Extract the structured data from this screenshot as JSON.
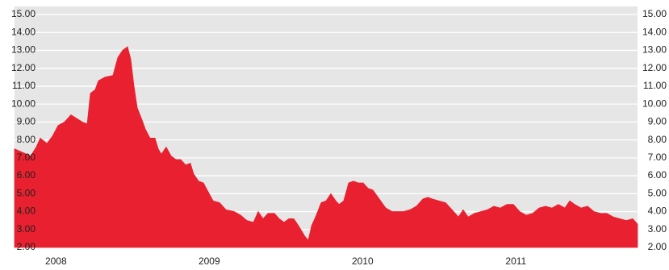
{
  "chart_data": {
    "type": "area",
    "color": "#e8202f",
    "grid": true,
    "x": [
      2007.73,
      2007.783,
      2007.835,
      2007.872,
      2007.898,
      2007.941,
      2007.977,
      2008.014,
      2008.056,
      2008.098,
      2008.135,
      2008.172,
      2008.204,
      2008.225,
      2008.256,
      2008.277,
      2008.319,
      2008.372,
      2008.404,
      2008.435,
      2008.467,
      2008.488,
      2008.509,
      2008.53,
      2008.562,
      2008.583,
      2008.614,
      2008.646,
      2008.667,
      2008.688,
      2008.719,
      2008.751,
      2008.783,
      2008.814,
      2008.846,
      2008.877,
      2008.898,
      2008.93,
      2008.962,
      2008.993,
      2009.025,
      2009.067,
      2009.109,
      2009.162,
      2009.204,
      2009.246,
      2009.288,
      2009.319,
      2009.351,
      2009.383,
      2009.425,
      2009.456,
      2009.488,
      2009.519,
      2009.551,
      2009.583,
      2009.625,
      2009.646,
      2009.667,
      2009.698,
      2009.73,
      2009.762,
      2009.793,
      2009.825,
      2009.846,
      2009.877,
      2009.909,
      2009.941,
      2009.972,
      2010.004,
      2010.035,
      2010.067,
      2010.109,
      2010.151,
      2010.193,
      2010.235,
      2010.267,
      2010.309,
      2010.351,
      2010.393,
      2010.425,
      2010.456,
      2010.498,
      2010.541,
      2010.583,
      2010.625,
      2010.656,
      2010.688,
      2010.73,
      2010.772,
      2010.814,
      2010.856,
      2010.898,
      2010.941,
      2010.983,
      2011.025,
      2011.067,
      2011.109,
      2011.151,
      2011.193,
      2011.235,
      2011.277,
      2011.319,
      2011.351,
      2011.383,
      2011.425,
      2011.467,
      2011.509,
      2011.551,
      2011.593,
      2011.635,
      2011.677,
      2011.719,
      2011.762,
      2011.793
    ],
    "values": [
      7.5,
      7.3,
      7.1,
      7.6,
      8.1,
      7.8,
      8.2,
      8.8,
      9.0,
      9.4,
      9.2,
      9.0,
      8.9,
      10.6,
      10.8,
      11.3,
      11.5,
      11.6,
      12.6,
      13.0,
      13.2,
      12.5,
      11.0,
      9.8,
      9.1,
      8.6,
      8.1,
      8.1,
      7.5,
      7.2,
      7.6,
      7.1,
      6.9,
      6.9,
      6.6,
      6.7,
      6.1,
      5.7,
      5.6,
      5.1,
      4.6,
      4.5,
      4.1,
      4.0,
      3.8,
      3.5,
      3.4,
      4.0,
      3.6,
      3.9,
      3.9,
      3.6,
      3.4,
      3.6,
      3.6,
      3.2,
      2.6,
      2.4,
      3.2,
      3.8,
      4.5,
      4.6,
      5.0,
      4.6,
      4.4,
      4.6,
      5.6,
      5.7,
      5.6,
      5.6,
      5.3,
      5.2,
      4.7,
      4.2,
      4.0,
      4.0,
      4.0,
      4.1,
      4.3,
      4.7,
      4.8,
      4.7,
      4.6,
      4.5,
      4.1,
      3.7,
      4.1,
      3.7,
      3.9,
      4.0,
      4.1,
      4.3,
      4.2,
      4.4,
      4.4,
      4.0,
      3.8,
      3.9,
      4.2,
      4.3,
      4.2,
      4.4,
      4.2,
      4.6,
      4.4,
      4.2,
      4.3,
      4.0,
      3.9,
      3.9,
      3.7,
      3.6,
      3.5,
      3.6,
      3.3
    ],
    "xlim": [
      2007.73,
      2011.793
    ],
    "xticks": [
      2008,
      2009,
      2010,
      2011
    ],
    "ylim": [
      2,
      15
    ],
    "yticks": [
      {
        "value": 2,
        "label": "2.00"
      },
      {
        "value": 3,
        "label": "3.00"
      },
      {
        "value": 4,
        "label": "4.00"
      },
      {
        "value": 5,
        "label": "5.00"
      },
      {
        "value": 6,
        "label": "6.00"
      },
      {
        "value": 7,
        "label": "7.00"
      },
      {
        "value": 8,
        "label": "8.00"
      },
      {
        "value": 9,
        "label": "9.00"
      },
      {
        "value": 10,
        "label": "10.00"
      },
      {
        "value": 11,
        "label": "11.00"
      },
      {
        "value": 12,
        "label": "12.00"
      },
      {
        "value": 13,
        "label": "13.00"
      },
      {
        "value": 14,
        "label": "14.00"
      },
      {
        "value": 15,
        "label": "15.00"
      }
    ]
  }
}
